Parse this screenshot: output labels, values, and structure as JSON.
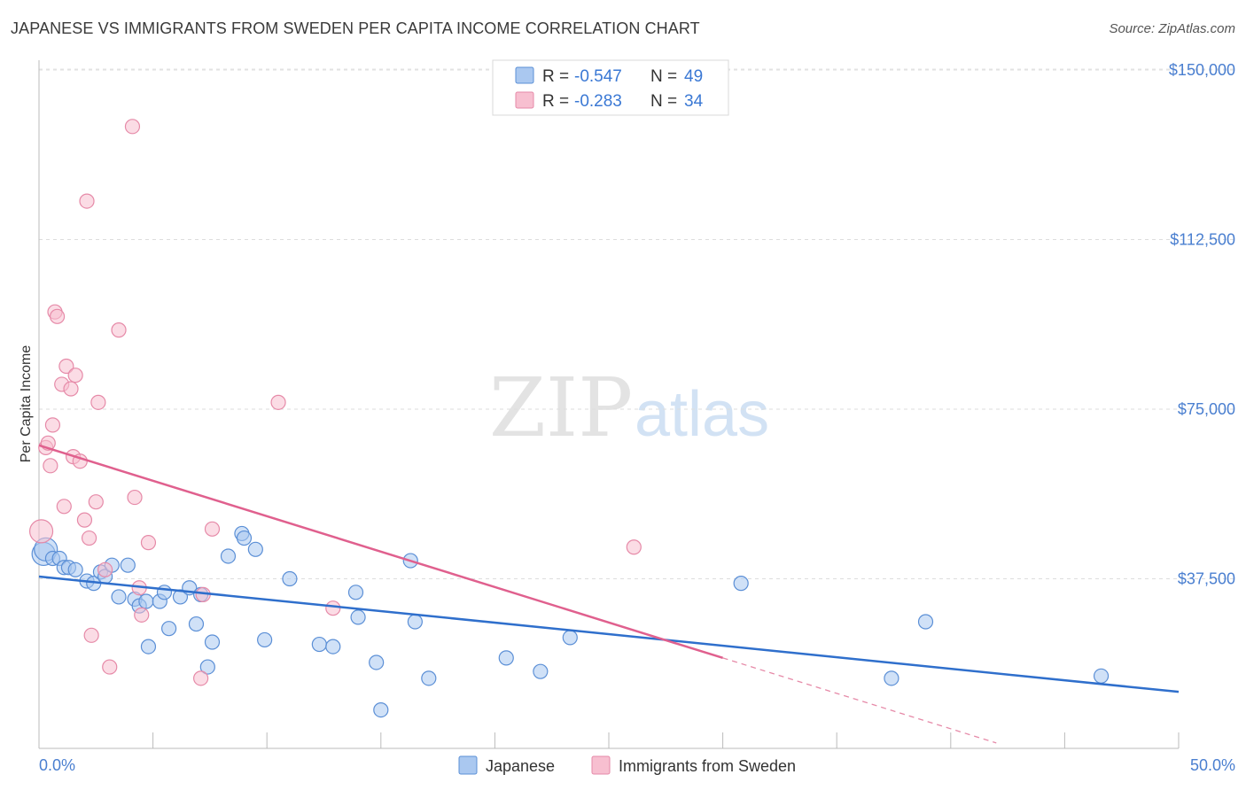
{
  "title": "JAPANESE VS IMMIGRANTS FROM SWEDEN PER CAPITA INCOME CORRELATION CHART",
  "source": "Source: ZipAtlas.com",
  "watermark": {
    "part1": "ZIP",
    "part2": "atlas"
  },
  "colors": {
    "japanese_fill": "#aac8f0",
    "japanese_stroke": "#5b8fd6",
    "japanese_line": "#2f6fcc",
    "sweden_fill": "#f7bfd0",
    "sweden_stroke": "#e68aa8",
    "sweden_line": "#e0608e",
    "tick_text": "#4a7fd0"
  },
  "legend": {
    "rows": [
      {
        "r_label": "R = ",
        "r_value": "-0.547",
        "n_label": "N = ",
        "n_value": "49"
      },
      {
        "r_label": "R = ",
        "r_value": "-0.283",
        "n_label": "N = ",
        "n_value": "34"
      }
    ]
  },
  "chart_data": {
    "type": "scatter",
    "title": "JAPANESE VS IMMIGRANTS FROM SWEDEN PER CAPITA INCOME CORRELATION CHART",
    "xlabel": "",
    "ylabel": "Per Capita Income",
    "xlim": [
      0,
      50
    ],
    "ylim": [
      0,
      150000
    ],
    "x_tick_labels": [
      "0.0%",
      "50.0%"
    ],
    "y_ticks": [
      37500,
      75000,
      112500,
      150000
    ],
    "y_tick_labels": [
      "$37,500",
      "$75,000",
      "$112,500",
      "$150,000"
    ],
    "grid": true,
    "legend_position": "top-center",
    "series": [
      {
        "name": "Japanese",
        "r": -0.547,
        "n": 49,
        "trend": {
          "x": [
            0,
            50
          ],
          "y": [
            38000,
            12500
          ]
        },
        "points": [
          {
            "x": 0.2,
            "y": 43000
          },
          {
            "x": 0.3,
            "y": 44000
          },
          {
            "x": 0.6,
            "y": 42000
          },
          {
            "x": 0.9,
            "y": 42000
          },
          {
            "x": 1.1,
            "y": 40000
          },
          {
            "x": 1.3,
            "y": 40000
          },
          {
            "x": 1.6,
            "y": 39500
          },
          {
            "x": 2.1,
            "y": 37000
          },
          {
            "x": 2.4,
            "y": 36500
          },
          {
            "x": 2.7,
            "y": 39000
          },
          {
            "x": 2.9,
            "y": 38000
          },
          {
            "x": 3.2,
            "y": 40500
          },
          {
            "x": 3.5,
            "y": 33500
          },
          {
            "x": 3.9,
            "y": 40500
          },
          {
            "x": 4.2,
            "y": 33000
          },
          {
            "x": 4.4,
            "y": 31500
          },
          {
            "x": 4.7,
            "y": 32500
          },
          {
            "x": 4.8,
            "y": 22500
          },
          {
            "x": 5.3,
            "y": 32500
          },
          {
            "x": 5.5,
            "y": 34500
          },
          {
            "x": 5.7,
            "y": 26500
          },
          {
            "x": 6.2,
            "y": 33500
          },
          {
            "x": 6.6,
            "y": 35500
          },
          {
            "x": 6.9,
            "y": 27500
          },
          {
            "x": 7.1,
            "y": 34000
          },
          {
            "x": 7.4,
            "y": 18000
          },
          {
            "x": 7.6,
            "y": 23500
          },
          {
            "x": 8.3,
            "y": 42500
          },
          {
            "x": 8.9,
            "y": 47500
          },
          {
            "x": 9.0,
            "y": 46500
          },
          {
            "x": 9.5,
            "y": 44000
          },
          {
            "x": 9.9,
            "y": 24000
          },
          {
            "x": 11.0,
            "y": 37500
          },
          {
            "x": 12.3,
            "y": 23000
          },
          {
            "x": 12.9,
            "y": 22500
          },
          {
            "x": 13.9,
            "y": 34500
          },
          {
            "x": 14.0,
            "y": 29000
          },
          {
            "x": 14.8,
            "y": 19000
          },
          {
            "x": 15.0,
            "y": 8500
          },
          {
            "x": 16.3,
            "y": 41500
          },
          {
            "x": 16.5,
            "y": 28000
          },
          {
            "x": 17.1,
            "y": 15500
          },
          {
            "x": 20.5,
            "y": 20000
          },
          {
            "x": 22.0,
            "y": 17000
          },
          {
            "x": 23.3,
            "y": 24500
          },
          {
            "x": 30.8,
            "y": 36500
          },
          {
            "x": 37.4,
            "y": 15500
          },
          {
            "x": 38.9,
            "y": 28000
          },
          {
            "x": 46.6,
            "y": 16000
          }
        ]
      },
      {
        "name": "Immigrants from Sweden",
        "r": -0.283,
        "n": 34,
        "trend": {
          "x": [
            0,
            30.0
          ],
          "y": [
            67000,
            20000
          ]
        },
        "trend_dashed": {
          "x": [
            30.0,
            42.0
          ],
          "y": [
            20000,
            1200
          ]
        },
        "points": [
          {
            "x": 0.1,
            "y": 48000
          },
          {
            "x": 0.3,
            "y": 66500
          },
          {
            "x": 0.4,
            "y": 67500
          },
          {
            "x": 0.5,
            "y": 62500
          },
          {
            "x": 0.6,
            "y": 71500
          },
          {
            "x": 0.7,
            "y": 96500
          },
          {
            "x": 0.8,
            "y": 95500
          },
          {
            "x": 1.0,
            "y": 80500
          },
          {
            "x": 1.1,
            "y": 53500
          },
          {
            "x": 1.2,
            "y": 84500
          },
          {
            "x": 1.4,
            "y": 79500
          },
          {
            "x": 1.5,
            "y": 64500
          },
          {
            "x": 1.6,
            "y": 82500
          },
          {
            "x": 1.8,
            "y": 63500
          },
          {
            "x": 2.0,
            "y": 50500
          },
          {
            "x": 2.1,
            "y": 121000
          },
          {
            "x": 2.2,
            "y": 46500
          },
          {
            "x": 2.3,
            "y": 25000
          },
          {
            "x": 2.5,
            "y": 54500
          },
          {
            "x": 2.6,
            "y": 76500
          },
          {
            "x": 2.9,
            "y": 39500
          },
          {
            "x": 3.1,
            "y": 18000
          },
          {
            "x": 3.5,
            "y": 92500
          },
          {
            "x": 4.1,
            "y": 137500
          },
          {
            "x": 4.2,
            "y": 55500
          },
          {
            "x": 4.4,
            "y": 35500
          },
          {
            "x": 4.5,
            "y": 29500
          },
          {
            "x": 4.8,
            "y": 45500
          },
          {
            "x": 7.1,
            "y": 15500
          },
          {
            "x": 7.2,
            "y": 34000
          },
          {
            "x": 7.6,
            "y": 48500
          },
          {
            "x": 10.5,
            "y": 76500
          },
          {
            "x": 12.9,
            "y": 31000
          },
          {
            "x": 26.1,
            "y": 44500
          }
        ]
      }
    ]
  }
}
